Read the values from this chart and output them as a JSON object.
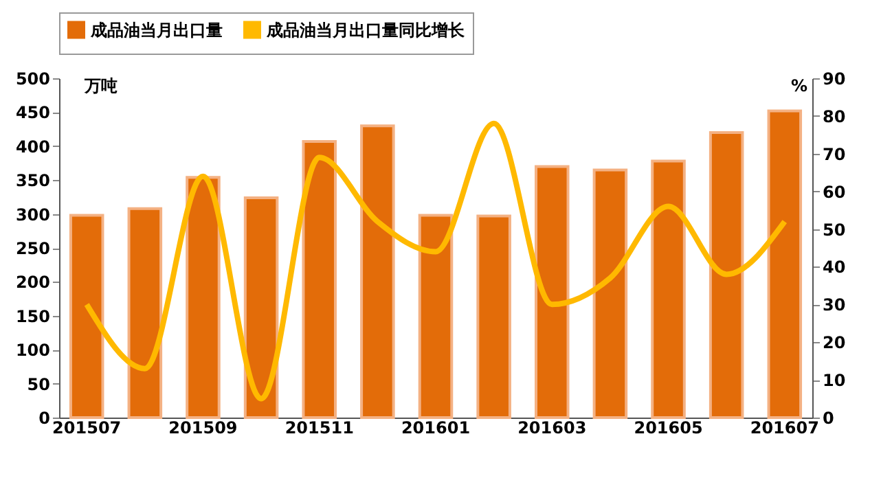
{
  "chart_data": {
    "type": "bar",
    "categories": [
      "201507",
      null,
      "201509",
      null,
      "201511",
      null,
      "201601",
      null,
      "201603",
      null,
      "201605",
      null,
      "201607"
    ],
    "series": [
      {
        "name": "成品油当月出口量",
        "color": "#e36c09",
        "values": [
          298,
          308,
          354,
          324,
          407,
          430,
          298,
          297,
          370,
          365,
          378,
          420,
          452
        ]
      },
      {
        "name": "成品油当月出口量同比增长",
        "type": "line",
        "axis": "y2",
        "color": "#ffb900",
        "values": [
          30,
          13,
          64,
          5,
          69,
          52,
          44,
          78,
          30,
          37,
          56,
          38,
          52
        ]
      }
    ],
    "ylabel": "万吨",
    "y2label": "%",
    "ylim": [
      0,
      500
    ],
    "yticks": [
      0,
      50,
      100,
      150,
      200,
      250,
      300,
      350,
      400,
      450,
      500
    ],
    "y2lim": [
      0,
      90
    ],
    "y2ticks": [
      0,
      10,
      20,
      30,
      40,
      50,
      60,
      70,
      80,
      90
    ],
    "legend": "top",
    "grid": false
  }
}
